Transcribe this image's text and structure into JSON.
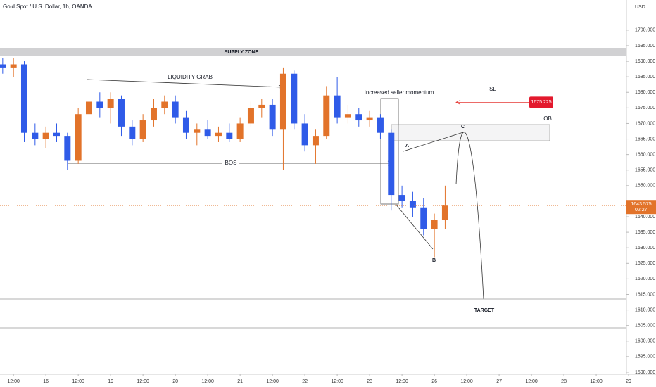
{
  "chart_data": {
    "type": "candlestick",
    "title": "Gold Spot / U.S. Dollar, 1h, OANDA",
    "currency": "USD",
    "up_color": "#e2732a",
    "down_color": "#2f5be8",
    "ohlc": [
      [
        1689,
        1691,
        1686,
        1688
      ],
      [
        1688,
        1691,
        1685,
        1689
      ],
      [
        1689,
        1690,
        1664,
        1667
      ],
      [
        1667,
        1670,
        1663,
        1665
      ],
      [
        1665,
        1669,
        1662,
        1667
      ],
      [
        1667,
        1670,
        1664,
        1666
      ],
      [
        1666,
        1667,
        1655,
        1658
      ],
      [
        1658,
        1675,
        1657,
        1673
      ],
      [
        1673,
        1681,
        1671,
        1677
      ],
      [
        1677,
        1680,
        1672,
        1675
      ],
      [
        1675,
        1680,
        1670,
        1678
      ],
      [
        1678,
        1679,
        1666,
        1669
      ],
      [
        1669,
        1671,
        1663,
        1665
      ],
      [
        1665,
        1673,
        1664,
        1671
      ],
      [
        1671,
        1678,
        1669,
        1675
      ],
      [
        1675,
        1679,
        1673,
        1677
      ],
      [
        1677,
        1679,
        1670,
        1672
      ],
      [
        1672,
        1674,
        1665,
        1667
      ],
      [
        1667,
        1670,
        1663,
        1668
      ],
      [
        1668,
        1671,
        1665,
        1666
      ],
      [
        1666,
        1669,
        1664,
        1667
      ],
      [
        1667,
        1670,
        1664,
        1665
      ],
      [
        1665,
        1672,
        1664,
        1670
      ],
      [
        1670,
        1677,
        1669,
        1675
      ],
      [
        1675,
        1678,
        1672,
        1676
      ],
      [
        1676,
        1678,
        1666,
        1668
      ],
      [
        1668,
        1688,
        1655,
        1686
      ],
      [
        1686,
        1687,
        1668,
        1670
      ],
      [
        1670,
        1673,
        1661,
        1663
      ],
      [
        1663,
        1668,
        1657,
        1666
      ],
      [
        1666,
        1682,
        1665,
        1679
      ],
      [
        1679,
        1685,
        1670,
        1672
      ],
      [
        1672,
        1676,
        1670,
        1673
      ],
      [
        1673,
        1675,
        1669,
        1671
      ],
      [
        1671,
        1674,
        1669,
        1672
      ],
      [
        1672,
        1673,
        1665,
        1667
      ],
      [
        1667,
        1668,
        1642,
        1647
      ],
      [
        1647,
        1650,
        1643,
        1645
      ],
      [
        1645,
        1648,
        1640,
        1643
      ],
      [
        1643,
        1646,
        1634,
        1636
      ],
      [
        1636,
        1641,
        1627,
        1639
      ],
      [
        1639,
        1650,
        1636,
        1643.575
      ]
    ],
    "xlim": [
      -0.25,
      57.8
    ],
    "xticks": [
      {
        "value": 1,
        "label": "12:00"
      },
      {
        "value": 4,
        "label": "16"
      },
      {
        "value": 7,
        "label": "12:00"
      },
      {
        "value": 10,
        "label": "19"
      },
      {
        "value": 13,
        "label": "12:00"
      },
      {
        "value": 16,
        "label": "20"
      },
      {
        "value": 19,
        "label": "12:00"
      },
      {
        "value": 22,
        "label": "21"
      },
      {
        "value": 25,
        "label": "12:00"
      },
      {
        "value": 28,
        "label": "22"
      },
      {
        "value": 31,
        "label": "12:00"
      },
      {
        "value": 34,
        "label": "23"
      },
      {
        "value": 37,
        "label": "12:00"
      },
      {
        "value": 40,
        "label": "26"
      },
      {
        "value": 43,
        "label": "12:00"
      },
      {
        "value": 46,
        "label": "27"
      },
      {
        "value": 49,
        "label": "12:00"
      },
      {
        "value": 52,
        "label": "28"
      },
      {
        "value": 55,
        "label": "12:00"
      },
      {
        "value": 58,
        "label": "29"
      }
    ],
    "ylim": [
      1588,
      1704
    ],
    "yticks": [
      {
        "value": 1590,
        "label": "1590.000"
      },
      {
        "value": 1595,
        "label": "1595.000"
      },
      {
        "value": 1600,
        "label": "1600.000"
      },
      {
        "value": 1605,
        "label": "1605.000"
      },
      {
        "value": 1610,
        "label": "1610.000"
      },
      {
        "value": 1615,
        "label": "1615.000"
      },
      {
        "value": 1620,
        "label": "1620.000"
      },
      {
        "value": 1625,
        "label": "1625.000"
      },
      {
        "value": 1630,
        "label": "1630.000"
      },
      {
        "value": 1635,
        "label": "1635.000"
      },
      {
        "value": 1640,
        "label": "1640.000"
      },
      {
        "value": 1650,
        "label": "1650.000"
      },
      {
        "value": 1655,
        "label": "1655.000"
      },
      {
        "value": 1660,
        "label": "1660.000"
      },
      {
        "value": 1665,
        "label": "1665.000"
      },
      {
        "value": 1670,
        "label": "1670.000"
      },
      {
        "value": 1675,
        "label": "1675.000"
      },
      {
        "value": 1680,
        "label": "1680.000"
      },
      {
        "value": 1685,
        "label": "1685.000"
      },
      {
        "value": 1690,
        "label": "1690.000"
      },
      {
        "value": 1695,
        "label": "1695.000"
      },
      {
        "value": 1700,
        "label": "1700.000"
      }
    ],
    "last_price": 1643.575,
    "countdown": "02:27",
    "sl_price": 1675.225,
    "annotations": {
      "supply": "SUPPLY ZONE",
      "liquidity": "LIQUIDITY GRAB",
      "bos": "BOS",
      "momentum": "Increased seller momentum",
      "sl": "SL",
      "ob": "OB",
      "a": "A",
      "b": "B",
      "c": "C",
      "target": "TARGET"
    }
  }
}
